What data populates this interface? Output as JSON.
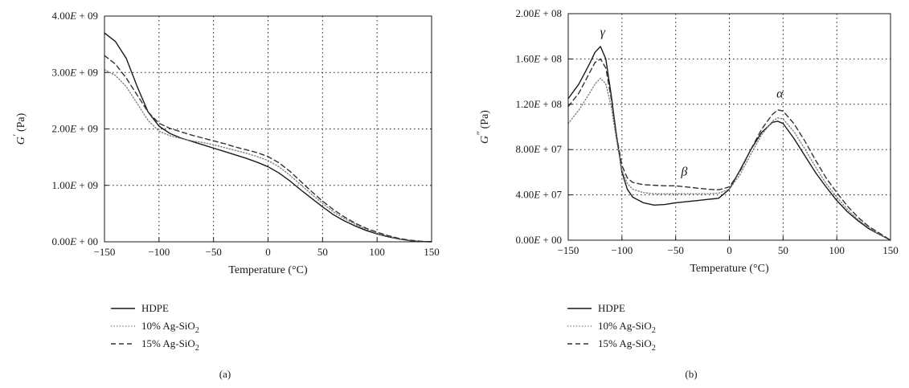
{
  "colors": {
    "hdpe": "#1a1a1a",
    "ag10": "#808080",
    "ag15": "#333333"
  },
  "chart_data": [
    {
      "id": "a",
      "type": "line",
      "panel_label": "(a)",
      "xlabel": "Temperature (°C)",
      "ylabel_main": "G",
      "ylabel_prime": "′",
      "ylabel_unit": " (Pa)",
      "xlim": [
        -150,
        150
      ],
      "ylim": [
        0,
        4000000000
      ],
      "x_ticks": [
        -150,
        -100,
        -50,
        0,
        50,
        100,
        150
      ],
      "x_tick_labels": [
        "−150",
        "−100",
        "−50",
        "0",
        "50",
        "100",
        "150"
      ],
      "y_ticks": [
        0,
        1000000000,
        2000000000,
        3000000000,
        4000000000
      ],
      "y_tick_labels": [
        {
          "mant": "0.00",
          "exp": "00"
        },
        {
          "mant": "1.00",
          "exp": "09"
        },
        {
          "mant": "2.00",
          "exp": "09"
        },
        {
          "mant": "3.00",
          "exp": "09"
        },
        {
          "mant": "4.00",
          "exp": "09"
        }
      ],
      "grid": true,
      "legend": [
        {
          "key": "hdpe",
          "label": "HDPE",
          "dash": "none"
        },
        {
          "key": "ag10",
          "label": "10% Ag-SiO",
          "sub": "2",
          "dash": "dotted"
        },
        {
          "key": "ag15",
          "label": "15% Ag-SiO",
          "sub": "2",
          "dash": "dashed"
        }
      ],
      "annotations": [],
      "series": [
        {
          "key": "hdpe",
          "x": [
            -150,
            -140,
            -130,
            -120,
            -110,
            -100,
            -90,
            -80,
            -70,
            -60,
            -50,
            -40,
            -30,
            -20,
            -10,
            0,
            10,
            20,
            30,
            40,
            50,
            60,
            70,
            80,
            90,
            100,
            110,
            120,
            130,
            140,
            150
          ],
          "y": [
            3700000000,
            3550000000,
            3250000000,
            2750000000,
            2300000000,
            2050000000,
            1920000000,
            1840000000,
            1780000000,
            1720000000,
            1660000000,
            1600000000,
            1540000000,
            1480000000,
            1410000000,
            1330000000,
            1220000000,
            1080000000,
            920000000,
            770000000,
            620000000,
            480000000,
            370000000,
            280000000,
            200000000,
            140000000,
            90000000,
            50000000,
            20000000,
            5000000,
            0
          ]
        },
        {
          "key": "ag10",
          "x": [
            -150,
            -140,
            -130,
            -120,
            -110,
            -100,
            -90,
            -80,
            -70,
            -60,
            -50,
            -40,
            -30,
            -20,
            -10,
            0,
            10,
            20,
            30,
            40,
            50,
            60,
            70,
            80,
            90,
            100,
            110,
            120,
            130,
            140,
            150
          ],
          "y": [
            3050000000,
            2950000000,
            2750000000,
            2450000000,
            2150000000,
            1960000000,
            1880000000,
            1830000000,
            1790000000,
            1760000000,
            1720000000,
            1670000000,
            1620000000,
            1570000000,
            1510000000,
            1440000000,
            1330000000,
            1180000000,
            1010000000,
            840000000,
            680000000,
            530000000,
            410000000,
            310000000,
            220000000,
            150000000,
            100000000,
            55000000,
            25000000,
            8000000,
            0
          ]
        },
        {
          "key": "ag15",
          "x": [
            -150,
            -140,
            -130,
            -120,
            -110,
            -100,
            -90,
            -80,
            -70,
            -60,
            -50,
            -40,
            -30,
            -20,
            -10,
            0,
            10,
            20,
            30,
            40,
            50,
            60,
            70,
            80,
            90,
            100,
            110,
            120,
            130,
            140,
            150
          ],
          "y": [
            3300000000,
            3150000000,
            2900000000,
            2600000000,
            2300000000,
            2100000000,
            2010000000,
            1950000000,
            1890000000,
            1840000000,
            1790000000,
            1740000000,
            1680000000,
            1630000000,
            1580000000,
            1510000000,
            1400000000,
            1250000000,
            1070000000,
            890000000,
            720000000,
            570000000,
            440000000,
            330000000,
            240000000,
            170000000,
            110000000,
            60000000,
            28000000,
            10000000,
            0
          ]
        }
      ]
    },
    {
      "id": "b",
      "type": "line",
      "panel_label": "(b)",
      "xlabel": "Temperature (°C)",
      "ylabel_main": "G",
      "ylabel_prime": "″",
      "ylabel_unit": " (Pa)",
      "xlim": [
        -150,
        150
      ],
      "ylim": [
        0,
        200000000
      ],
      "x_ticks": [
        -150,
        -100,
        -50,
        0,
        50,
        100,
        150
      ],
      "x_tick_labels": [
        "−150",
        "−100",
        "−50",
        "0",
        "50",
        "100",
        "150"
      ],
      "y_ticks": [
        0,
        40000000,
        80000000,
        120000000,
        160000000,
        200000000
      ],
      "y_tick_labels": [
        {
          "mant": "0.00",
          "exp": "00"
        },
        {
          "mant": "4.00",
          "exp": "07"
        },
        {
          "mant": "8.00",
          "exp": "07"
        },
        {
          "mant": "1.20",
          "exp": "08"
        },
        {
          "mant": "1.60",
          "exp": "08"
        },
        {
          "mant": "2.00",
          "exp": "08"
        }
      ],
      "grid": true,
      "legend": [
        {
          "key": "hdpe",
          "label": "HDPE",
          "dash": "none"
        },
        {
          "key": "ag10",
          "label": "10% Ag-SiO",
          "sub": "2",
          "dash": "dotted"
        },
        {
          "key": "ag15",
          "label": "15% Ag-SiO",
          "sub": "2",
          "dash": "dashed"
        }
      ],
      "annotations": [
        {
          "text": "γ",
          "x": -118,
          "y": 180000000
        },
        {
          "text": "β",
          "x": -42,
          "y": 57000000
        },
        {
          "text": "α",
          "x": 47,
          "y": 126000000
        }
      ],
      "series": [
        {
          "key": "hdpe",
          "x": [
            -150,
            -140,
            -130,
            -125,
            -120,
            -115,
            -110,
            -105,
            -100,
            -95,
            -90,
            -80,
            -70,
            -60,
            -50,
            -40,
            -30,
            -20,
            -10,
            0,
            10,
            20,
            30,
            40,
            45,
            50,
            60,
            70,
            80,
            90,
            100,
            110,
            120,
            130,
            140,
            150
          ],
          "y": [
            125000000,
            138000000,
            156000000,
            166000000,
            171000000,
            160000000,
            128000000,
            92000000,
            60000000,
            45000000,
            38000000,
            33000000,
            31000000,
            31500000,
            33000000,
            34000000,
            35000000,
            36000000,
            37000000,
            45000000,
            62000000,
            80000000,
            95000000,
            104000000,
            105000000,
            103000000,
            90000000,
            75000000,
            60000000,
            47000000,
            35000000,
            25000000,
            17000000,
            10000000,
            5000000,
            0
          ]
        },
        {
          "key": "ag10",
          "x": [
            -150,
            -140,
            -130,
            -125,
            -120,
            -115,
            -110,
            -105,
            -100,
            -95,
            -90,
            -80,
            -70,
            -60,
            -50,
            -40,
            -30,
            -20,
            -10,
            0,
            10,
            20,
            30,
            40,
            45,
            50,
            60,
            70,
            80,
            90,
            100,
            110,
            120,
            130,
            140,
            150
          ],
          "y": [
            103000000,
            115000000,
            130000000,
            138000000,
            143000000,
            138000000,
            118000000,
            88000000,
            62000000,
            50000000,
            45000000,
            42000000,
            41000000,
            41000000,
            41000000,
            41000000,
            41000000,
            41000000,
            41500000,
            45000000,
            58000000,
            76000000,
            93000000,
            105000000,
            108000000,
            107000000,
            96000000,
            81000000,
            65000000,
            50000000,
            38000000,
            27000000,
            18000000,
            11000000,
            5000000,
            0
          ]
        },
        {
          "key": "ag15",
          "x": [
            -150,
            -140,
            -130,
            -125,
            -120,
            -115,
            -110,
            -105,
            -100,
            -95,
            -90,
            -80,
            -70,
            -60,
            -50,
            -40,
            -30,
            -20,
            -10,
            0,
            10,
            20,
            30,
            40,
            45,
            50,
            60,
            70,
            80,
            90,
            100,
            110,
            120,
            130,
            140,
            150
          ],
          "y": [
            118000000,
            130000000,
            148000000,
            157000000,
            160000000,
            152000000,
            125000000,
            92000000,
            66000000,
            55000000,
            51000000,
            49000000,
            48500000,
            48000000,
            48000000,
            47000000,
            46000000,
            45000000,
            44500000,
            47000000,
            61000000,
            80000000,
            98000000,
            111000000,
            115000000,
            114000000,
            103000000,
            88000000,
            71000000,
            55000000,
            42000000,
            30000000,
            20000000,
            12000000,
            6000000,
            0
          ]
        }
      ]
    }
  ]
}
